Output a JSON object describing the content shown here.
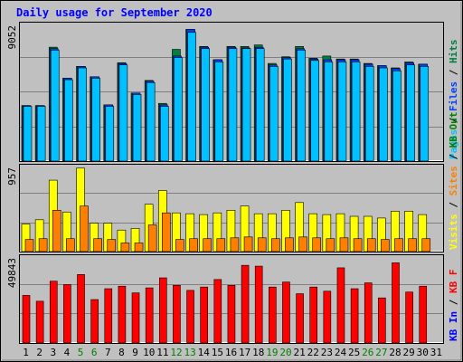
{
  "title": "Daily usage for September 2020",
  "colors": {
    "background": "#c0c0c0",
    "title": "#0000ff",
    "hits": "#008040",
    "files": "#0040ff",
    "pages": "#00c0ff",
    "visits": "#ffff00",
    "sites": "#ff8000",
    "kbout": "#008000",
    "kbin": "#0000ff",
    "kbf": "#ff0000",
    "weekend_label": "#008000",
    "weekday_label": "#000000"
  },
  "chart_data": [
    {
      "type": "bar",
      "title": "Daily usage for September 2020",
      "x": [
        1,
        2,
        3,
        4,
        5,
        6,
        7,
        8,
        9,
        10,
        11,
        12,
        13,
        14,
        15,
        16,
        17,
        18,
        19,
        20,
        21,
        22,
        23,
        24,
        25,
        26,
        27,
        28,
        29,
        30,
        31
      ],
      "weekend_days": [
        5,
        6,
        12,
        13,
        19,
        20,
        26,
        27
      ],
      "ylim": [
        0,
        9052
      ],
      "y_tick_label": "9052",
      "legend": [
        "Pages",
        "Files",
        "Hits"
      ],
      "series": [
        {
          "name": "Hits",
          "values": [
            3750,
            3750,
            7700,
            5600,
            6400,
            5700,
            3800,
            6650,
            4600,
            5450,
            3900,
            7550,
            8900,
            7750,
            6850,
            7750,
            7750,
            7850,
            6600,
            7050,
            7750,
            6950,
            7100,
            6900,
            6900,
            6600,
            6450,
            6300,
            6700,
            6550,
            0
          ]
        },
        {
          "name": "Files",
          "values": [
            3750,
            3750,
            7600,
            5600,
            6400,
            5700,
            3800,
            6600,
            4600,
            5400,
            3800,
            7100,
            8900,
            7700,
            6850,
            7700,
            7650,
            7700,
            6500,
            7000,
            7600,
            6900,
            6850,
            6850,
            6850,
            6550,
            6450,
            6250,
            6650,
            6550,
            0
          ]
        },
        {
          "name": "Pages",
          "values": [
            3700,
            3700,
            7500,
            5500,
            6300,
            5600,
            3700,
            6500,
            4500,
            5300,
            3700,
            7000,
            8700,
            7600,
            6700,
            7600,
            7600,
            7600,
            6400,
            6900,
            7500,
            6800,
            6700,
            6700,
            6700,
            6400,
            6300,
            6100,
            6500,
            6400,
            0
          ]
        }
      ]
    },
    {
      "type": "bar",
      "ylim": [
        0,
        957
      ],
      "y_tick_label": "957",
      "legend": [
        "Visits",
        "Sites",
        "KB Out"
      ],
      "series": [
        {
          "name": "Visits",
          "values": [
            320,
            370,
            830,
            460,
            970,
            330,
            330,
            250,
            270,
            550,
            710,
            450,
            440,
            430,
            450,
            480,
            530,
            440,
            440,
            480,
            570,
            440,
            430,
            440,
            410,
            410,
            390,
            470,
            470,
            430,
            0
          ]
        },
        {
          "name": "Sites",
          "values": [
            140,
            150,
            480,
            150,
            530,
            150,
            140,
            100,
            100,
            310,
            450,
            140,
            150,
            150,
            150,
            160,
            170,
            160,
            150,
            160,
            170,
            160,
            150,
            160,
            150,
            150,
            140,
            150,
            150,
            150,
            0
          ]
        }
      ]
    },
    {
      "type": "bar",
      "ylim": [
        0,
        49843
      ],
      "y_tick_label": "49843",
      "legend": [
        "KB In",
        "KB F"
      ],
      "series": [
        {
          "name": "KB F",
          "values": [
            28500,
            25000,
            37000,
            35000,
            41000,
            26000,
            32500,
            34000,
            30000,
            33000,
            39000,
            34500,
            31500,
            33500,
            38000,
            34500,
            46500,
            46000,
            33500,
            36500,
            29500,
            33500,
            31000,
            45000,
            32500,
            36000,
            27000,
            48000,
            30500,
            34000,
            0
          ]
        }
      ]
    }
  ]
}
